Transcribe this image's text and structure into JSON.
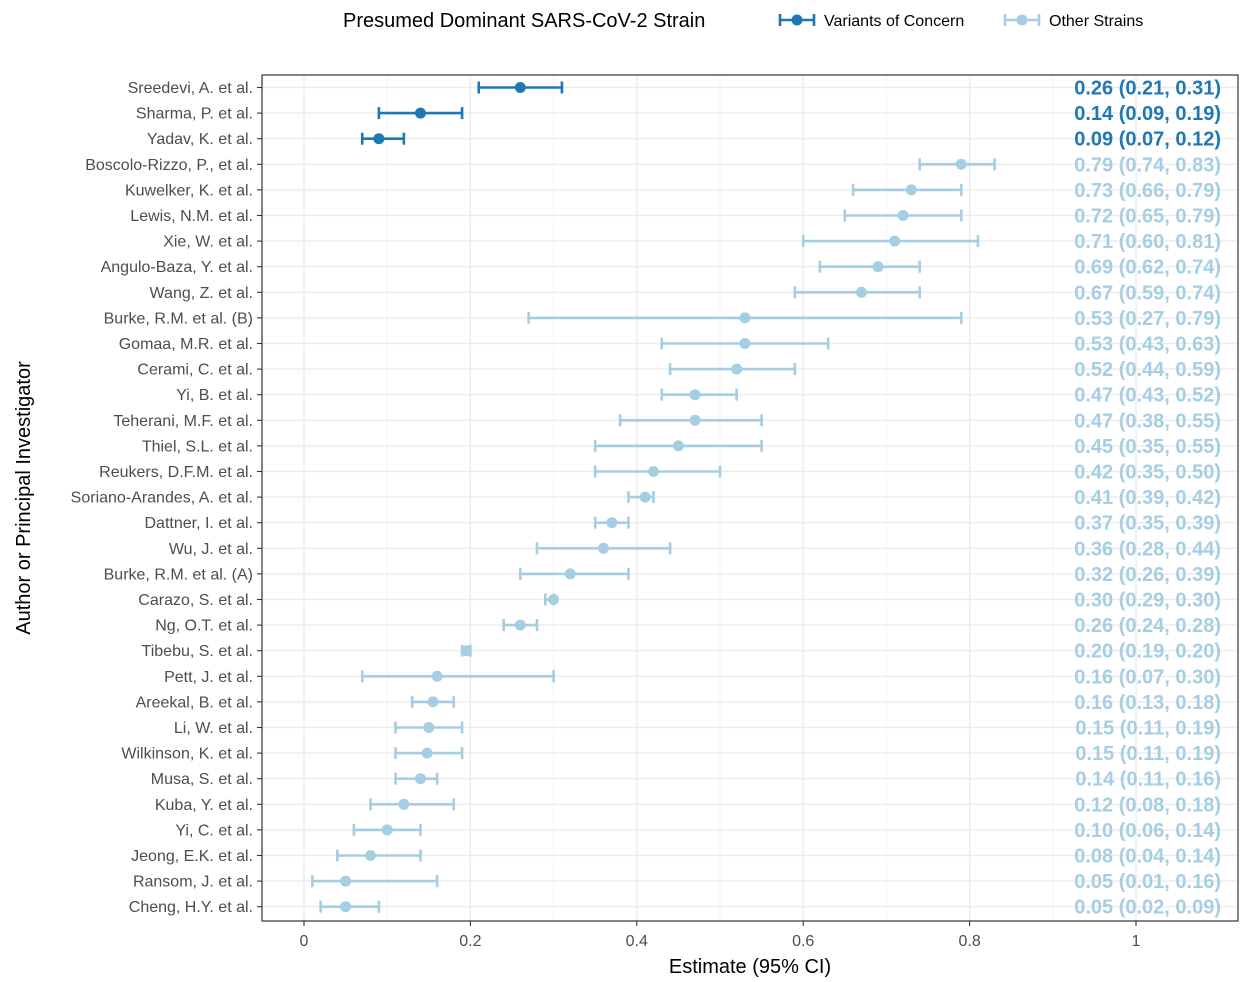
{
  "chart_data": {
    "type": "forest",
    "xlabel": "Estimate (95% CI)",
    "ylabel": "Author or Principal Investigator",
    "xlim": [
      -0.05,
      1.12
    ],
    "xticks": [
      0,
      0.2,
      0.4,
      0.6,
      0.8,
      1
    ],
    "xtick_labels": [
      "0",
      "0.2",
      "0.4",
      "0.6",
      "0.8",
      "1"
    ],
    "grid": true,
    "legend": {
      "title": "Presumed Dominant SARS-CoV-2 Strain",
      "position": "top",
      "items": [
        {
          "label": "Variants of Concern",
          "color": "#1f78b4"
        },
        {
          "label": "Other Strains",
          "color": "#a6cee3"
        }
      ]
    },
    "series": [
      {
        "name": "Variants of Concern",
        "color": "#1f78b4"
      },
      {
        "name": "Other Strains",
        "color": "#a6cee3"
      }
    ],
    "rows": [
      {
        "author": "Sreedevi, A. et al.",
        "est": 0.26,
        "lo": 0.21,
        "hi": 0.31,
        "group": 0,
        "label": "0.26 (0.21, 0.31)"
      },
      {
        "author": "Sharma, P. et al.",
        "est": 0.14,
        "lo": 0.09,
        "hi": 0.19,
        "group": 0,
        "label": "0.14 (0.09, 0.19)"
      },
      {
        "author": "Yadav, K. et al.",
        "est": 0.09,
        "lo": 0.07,
        "hi": 0.12,
        "group": 0,
        "label": "0.09 (0.07, 0.12)"
      },
      {
        "author": "Boscolo-Rizzo, P., et al.",
        "est": 0.79,
        "lo": 0.74,
        "hi": 0.83,
        "group": 1,
        "label": "0.79 (0.74, 0.83)"
      },
      {
        "author": "Kuwelker, K. et al.",
        "est": 0.73,
        "lo": 0.66,
        "hi": 0.79,
        "group": 1,
        "label": "0.73 (0.66, 0.79)"
      },
      {
        "author": "Lewis, N.M. et al.",
        "est": 0.72,
        "lo": 0.65,
        "hi": 0.79,
        "group": 1,
        "label": "0.72 (0.65, 0.79)"
      },
      {
        "author": "Xie, W. et al.",
        "est": 0.71,
        "lo": 0.6,
        "hi": 0.81,
        "group": 1,
        "label": "0.71 (0.60, 0.81)"
      },
      {
        "author": "Angulo-Baza, Y. et al.",
        "est": 0.69,
        "lo": 0.62,
        "hi": 0.74,
        "group": 1,
        "label": "0.69 (0.62, 0.74)"
      },
      {
        "author": "Wang, Z. et al.",
        "est": 0.67,
        "lo": 0.59,
        "hi": 0.74,
        "group": 1,
        "label": "0.67 (0.59, 0.74)"
      },
      {
        "author": "Burke, R.M. et al. (B)",
        "est": 0.53,
        "lo": 0.27,
        "hi": 0.79,
        "group": 1,
        "label": "0.53 (0.27, 0.79)"
      },
      {
        "author": "Gomaa, M.R. et al.",
        "est": 0.53,
        "lo": 0.43,
        "hi": 0.63,
        "group": 1,
        "label": "0.53 (0.43, 0.63)"
      },
      {
        "author": "Cerami, C. et al.",
        "est": 0.52,
        "lo": 0.44,
        "hi": 0.59,
        "group": 1,
        "label": "0.52 (0.44, 0.59)"
      },
      {
        "author": "Yi, B. et al.",
        "est": 0.47,
        "lo": 0.43,
        "hi": 0.52,
        "group": 1,
        "label": "0.47 (0.43, 0.52)"
      },
      {
        "author": "Teherani, M.F. et al.",
        "est": 0.47,
        "lo": 0.38,
        "hi": 0.55,
        "group": 1,
        "label": "0.47 (0.38, 0.55)"
      },
      {
        "author": "Thiel, S.L. et al.",
        "est": 0.45,
        "lo": 0.35,
        "hi": 0.55,
        "group": 1,
        "label": "0.45 (0.35, 0.55)"
      },
      {
        "author": "Reukers, D.F.M. et al.",
        "est": 0.42,
        "lo": 0.35,
        "hi": 0.5,
        "group": 1,
        "label": "0.42 (0.35, 0.50)"
      },
      {
        "author": "Soriano-Arandes, A. et al.",
        "est": 0.41,
        "lo": 0.39,
        "hi": 0.42,
        "group": 1,
        "label": "0.41 (0.39, 0.42)"
      },
      {
        "author": "Dattner, I. et al.",
        "est": 0.37,
        "lo": 0.35,
        "hi": 0.39,
        "group": 1,
        "label": "0.37 (0.35, 0.39)"
      },
      {
        "author": "Wu, J. et al.",
        "est": 0.36,
        "lo": 0.28,
        "hi": 0.44,
        "group": 1,
        "label": "0.36 (0.28, 0.44)"
      },
      {
        "author": "Burke, R.M. et al. (A)",
        "est": 0.32,
        "lo": 0.26,
        "hi": 0.39,
        "group": 1,
        "label": "0.32 (0.26, 0.39)"
      },
      {
        "author": "Carazo, S. et al.",
        "est": 0.3,
        "lo": 0.29,
        "hi": 0.3,
        "group": 1,
        "label": "0.30 (0.29, 0.30)"
      },
      {
        "author": "Ng, O.T. et al.",
        "est": 0.26,
        "lo": 0.24,
        "hi": 0.28,
        "group": 1,
        "label": "0.26 (0.24, 0.28)"
      },
      {
        "author": "Tibebu, S. et al.",
        "est": 0.195,
        "lo": 0.19,
        "hi": 0.2,
        "group": 1,
        "label": "0.20 (0.19, 0.20)"
      },
      {
        "author": "Pett, J. et al.",
        "est": 0.16,
        "lo": 0.07,
        "hi": 0.3,
        "group": 1,
        "label": "0.16 (0.07, 0.30)"
      },
      {
        "author": "Areekal, B. et al.",
        "est": 0.155,
        "lo": 0.13,
        "hi": 0.18,
        "group": 1,
        "label": "0.16 (0.13, 0.18)"
      },
      {
        "author": "Li, W. et al.",
        "est": 0.15,
        "lo": 0.11,
        "hi": 0.19,
        "group": 1,
        "label": "0.15 (0.11, 0.19)"
      },
      {
        "author": "Wilkinson, K. et al.",
        "est": 0.148,
        "lo": 0.11,
        "hi": 0.19,
        "group": 1,
        "label": "0.15 (0.11, 0.19)"
      },
      {
        "author": "Musa, S. et al.",
        "est": 0.14,
        "lo": 0.11,
        "hi": 0.16,
        "group": 1,
        "label": "0.14 (0.11, 0.16)"
      },
      {
        "author": "Kuba, Y. et al.",
        "est": 0.12,
        "lo": 0.08,
        "hi": 0.18,
        "group": 1,
        "label": "0.12 (0.08, 0.18)"
      },
      {
        "author": "Yi, C. et al.",
        "est": 0.1,
        "lo": 0.06,
        "hi": 0.14,
        "group": 1,
        "label": "0.10 (0.06, 0.14)"
      },
      {
        "author": "Jeong, E.K. et al.",
        "est": 0.08,
        "lo": 0.04,
        "hi": 0.14,
        "group": 1,
        "label": "0.08 (0.04, 0.14)"
      },
      {
        "author": "Ransom, J. et al.",
        "est": 0.05,
        "lo": 0.01,
        "hi": 0.16,
        "group": 1,
        "label": "0.05 (0.01, 0.16)"
      },
      {
        "author": "Cheng, H.Y. et al.",
        "est": 0.05,
        "lo": 0.02,
        "hi": 0.09,
        "group": 1,
        "label": "0.05 (0.02, 0.09)"
      }
    ]
  }
}
